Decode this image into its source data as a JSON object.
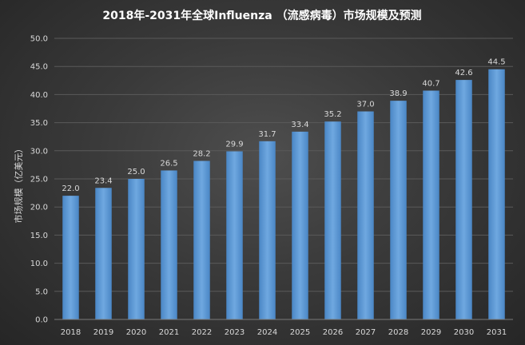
{
  "chart_data": {
    "type": "bar",
    "title": "2018年-2031年全球Influenza （流感病毒）市场规模及预测",
    "xlabel": "",
    "ylabel": "市场规模（亿美元）",
    "categories": [
      "2018",
      "2019",
      "2020",
      "2021",
      "2022",
      "2023",
      "2024",
      "2025",
      "2026",
      "2027",
      "2028",
      "2029",
      "2030",
      "2031"
    ],
    "values": [
      22.0,
      23.4,
      25.0,
      26.5,
      28.2,
      29.9,
      31.7,
      33.4,
      35.2,
      37.0,
      38.9,
      40.7,
      42.6,
      44.5
    ],
    "ylim": [
      0,
      50
    ],
    "ytick_step": 5,
    "grid": true,
    "legend": "none",
    "bar_color": "#5b9bd5"
  }
}
